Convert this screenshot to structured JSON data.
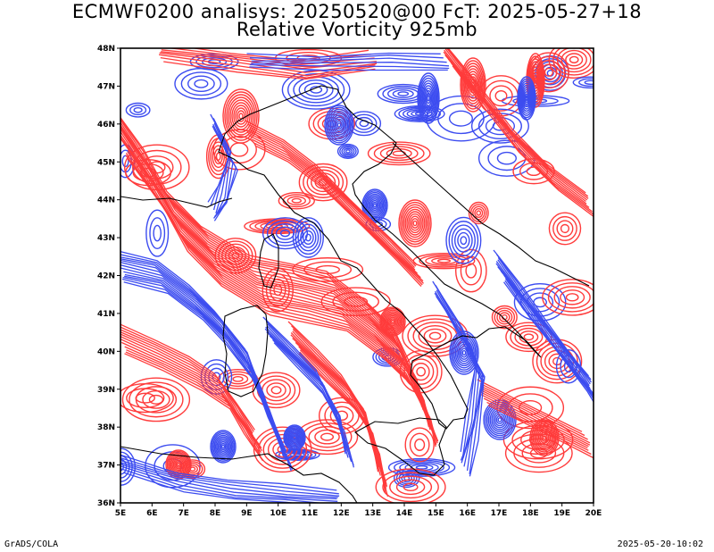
{
  "header": {
    "title_line1": "ECMWF0200 analisys: 20250520@00 FcT: 2025-05-27+18",
    "title_line2": "Relative Vorticity 925mb"
  },
  "footer": {
    "left": "GrADS/COLA",
    "right": "2025-05-20-10:02"
  },
  "map": {
    "lon_range": [
      5,
      20
    ],
    "lat_range": [
      36,
      48
    ],
    "x_tick_labels": [
      "5E",
      "6E",
      "7E",
      "8E",
      "9E",
      "10E",
      "11E",
      "12E",
      "13E",
      "14E",
      "15E",
      "16E",
      "17E",
      "18E",
      "19E",
      "20E"
    ],
    "y_tick_labels": [
      "36N",
      "37N",
      "38N",
      "39N",
      "40N",
      "41N",
      "42N",
      "43N",
      "44N",
      "45N",
      "46N",
      "47N",
      "48N"
    ],
    "colors": {
      "positive_vorticity": "#ff3b3b",
      "negative_vorticity": "#3c4cf0",
      "coastline": "#000000"
    }
  }
}
